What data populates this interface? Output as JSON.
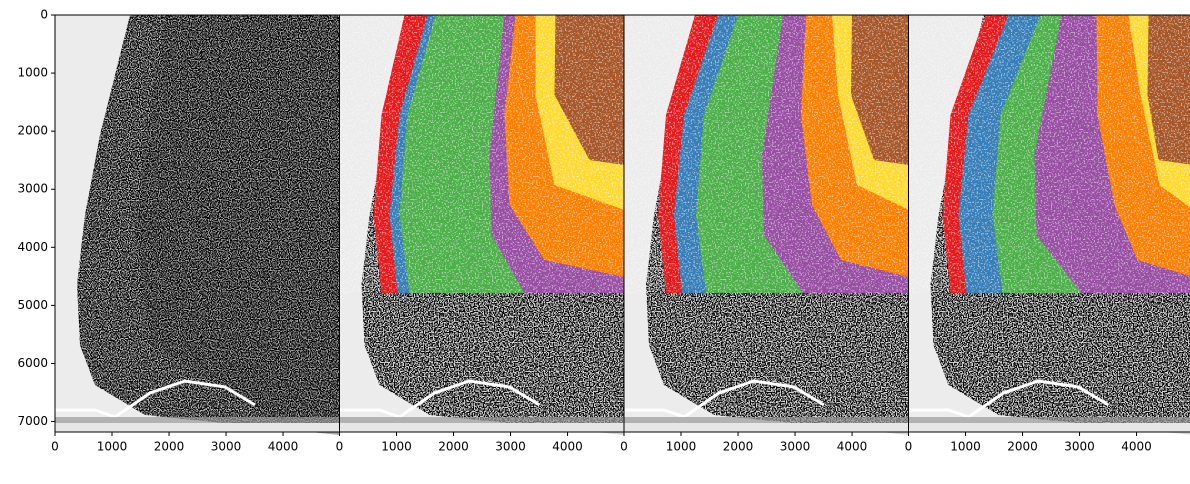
{
  "chart_data": [
    {
      "type": "image",
      "xlim": [
        0,
        4990
      ],
      "ylim": [
        7180,
        0
      ],
      "xticks": [
        0,
        1000,
        2000,
        3000,
        4000
      ],
      "yticks": [
        0,
        1000,
        2000,
        3000,
        4000,
        5000,
        6000,
        7000
      ]
    },
    {
      "type": "layers",
      "xlim": [
        0,
        4990
      ],
      "ylim": [
        7180,
        0
      ],
      "xticks": [
        0,
        1000,
        2000,
        3000,
        4000
      ],
      "colors": [
        "#e41a1c",
        "#377eb8",
        "#4daf4a",
        "#984ea3",
        "#ff7f00",
        "#ffd92f",
        "#a65628"
      ]
    },
    {
      "type": "layers",
      "xlim": [
        0,
        4990
      ],
      "ylim": [
        7180,
        0
      ],
      "xticks": [
        0,
        1000,
        2000,
        3000,
        4000
      ],
      "colors": [
        "#e41a1c",
        "#377eb8",
        "#4daf4a",
        "#984ea3",
        "#ff7f00",
        "#ffd92f",
        "#a65628"
      ]
    },
    {
      "type": "layers",
      "xlim": [
        0,
        4990
      ],
      "ylim": [
        7180,
        0
      ],
      "xticks": [
        0,
        1000,
        2000,
        3000,
        4000
      ],
      "colors": [
        "#e41a1c",
        "#377eb8",
        "#4daf4a",
        "#984ea3",
        "#ff7f00",
        "#ffd92f",
        "#a65628"
      ]
    }
  ]
}
